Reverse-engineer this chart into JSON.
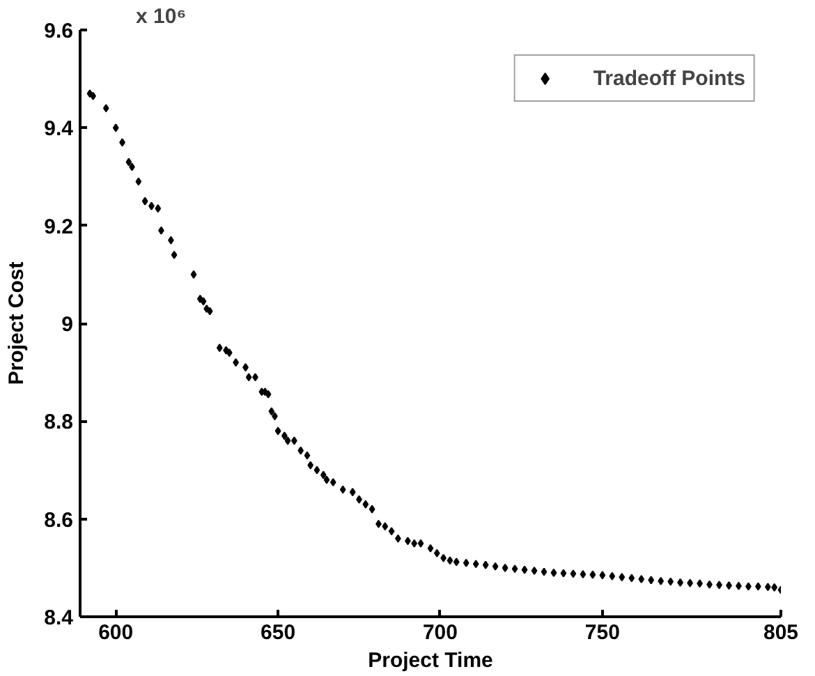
{
  "chart_data": {
    "type": "scatter",
    "xlabel": "Project Time",
    "ylabel": "Project Cost",
    "annotations": [
      "x 10⁶"
    ],
    "xlim": [
      589,
      805
    ],
    "ylim": [
      8.4,
      9.6
    ],
    "xticks": [
      600,
      650,
      700,
      750,
      805
    ],
    "yticks": [
      8.4,
      8.6,
      8.8,
      {
        "value": 9,
        "label": "9"
      },
      9.2,
      9.4,
      9.6
    ],
    "grid": false,
    "legend": "top right",
    "marker": "diamond",
    "series": [
      {
        "name": "Tradeoff Points",
        "color": "#000000",
        "x": [
          592,
          593,
          597,
          600,
          602,
          604,
          605,
          607,
          609,
          611,
          613,
          614,
          617,
          618,
          624,
          626,
          627,
          628,
          629,
          632,
          634,
          635,
          637,
          640,
          641,
          643,
          645,
          646,
          647,
          648,
          649,
          650,
          652,
          653,
          655,
          657,
          659,
          660,
          662,
          664,
          665,
          667,
          670,
          673,
          675,
          677,
          679,
          681,
          683,
          685,
          687,
          690,
          692,
          694,
          697,
          699,
          701,
          703,
          705,
          708,
          711,
          714,
          717,
          720,
          723,
          726,
          729,
          732,
          735,
          738,
          741,
          744,
          747,
          750,
          753,
          756,
          759,
          762,
          765,
          768,
          771,
          774,
          777,
          780,
          783,
          786,
          789,
          792,
          795,
          798,
          801,
          803,
          805
        ],
        "values": [
          9.47,
          9.465,
          9.44,
          9.4,
          9.37,
          9.33,
          9.32,
          9.29,
          9.25,
          9.24,
          9.235,
          9.19,
          9.17,
          9.14,
          9.1,
          9.05,
          9.045,
          9.03,
          9.025,
          8.95,
          8.945,
          8.94,
          8.92,
          8.91,
          8.89,
          8.89,
          8.86,
          8.86,
          8.855,
          8.82,
          8.81,
          8.78,
          8.77,
          8.76,
          8.76,
          8.74,
          8.73,
          8.71,
          8.7,
          8.69,
          8.68,
          8.675,
          8.66,
          8.655,
          8.64,
          8.63,
          8.62,
          8.59,
          8.585,
          8.575,
          8.56,
          8.555,
          8.55,
          8.55,
          8.54,
          8.53,
          8.52,
          8.515,
          8.512,
          8.51,
          8.508,
          8.506,
          8.503,
          8.5,
          8.498,
          8.496,
          8.494,
          8.492,
          8.49,
          8.489,
          8.488,
          8.487,
          8.486,
          8.485,
          8.483,
          8.481,
          8.479,
          8.477,
          8.475,
          8.473,
          8.472,
          8.47,
          8.469,
          8.468,
          8.466,
          8.465,
          8.464,
          8.463,
          8.462,
          8.462,
          8.461,
          8.46,
          8.455
        ]
      }
    ]
  }
}
